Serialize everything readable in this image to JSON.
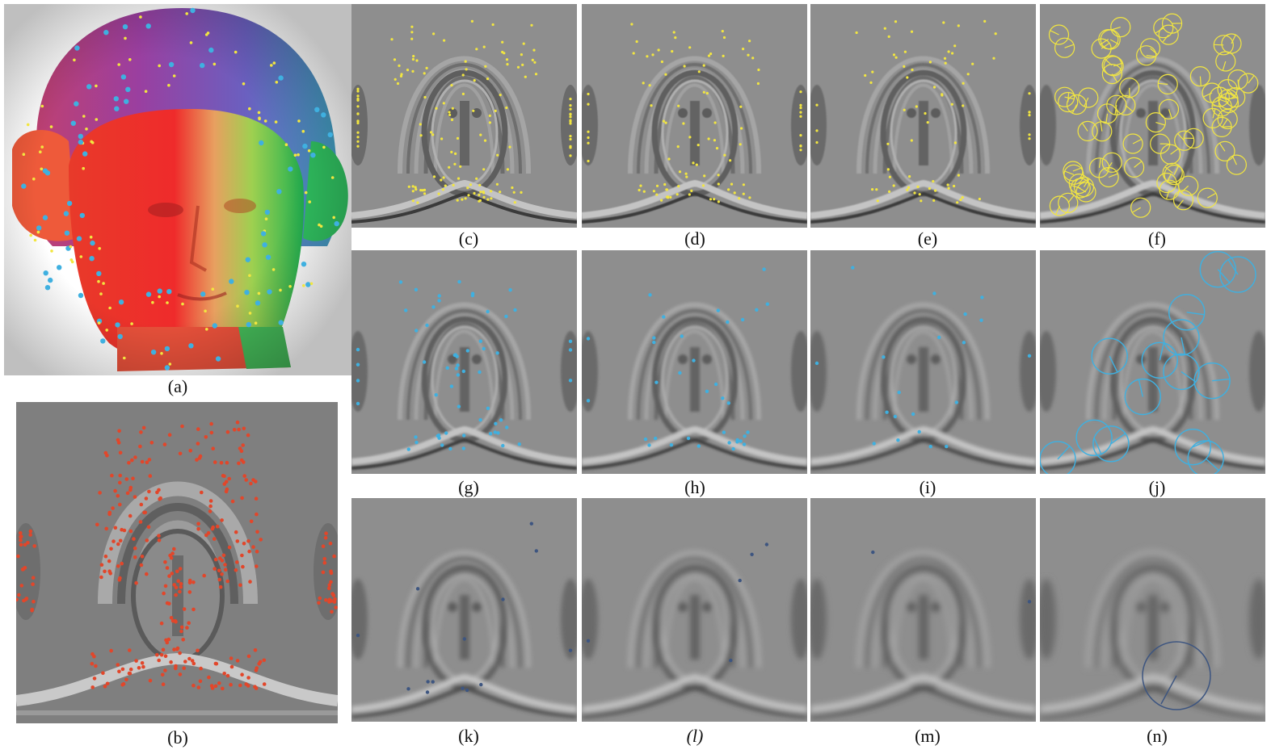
{
  "figure": {
    "captions": {
      "a": "(a)",
      "b": "(b)",
      "c": "(c)",
      "d": "(d)",
      "e": "(e)",
      "f": "(f)",
      "g": "(g)",
      "h": "(h)",
      "i": "(i)",
      "j": "(j)",
      "k": "(k)",
      "l": "(l)",
      "m": "(m)",
      "n": "(n)"
    },
    "colors": {
      "yellow_marker": "#f2e640",
      "cyan_marker": "#3fb0e0",
      "red_marker": "#e2462a",
      "navy_marker": "#3d5580",
      "panel_gray": "#8e8e8e"
    }
  }
}
